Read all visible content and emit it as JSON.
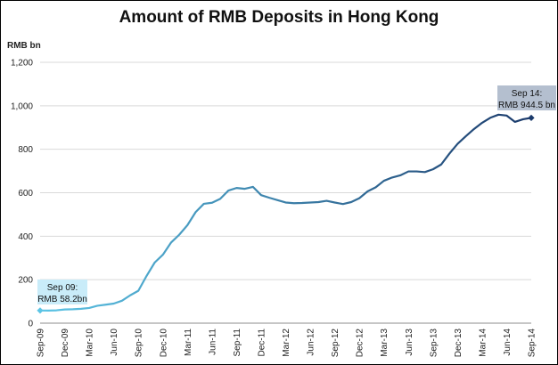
{
  "chart_data": {
    "type": "line",
    "title": "Amount of RMB Deposits in Hong Kong",
    "ylabel": "RMB bn",
    "xlabel": "",
    "ylim": [
      0,
      1200
    ],
    "yticks": [
      "0",
      "200",
      "400",
      "600",
      "800",
      "1,000",
      "1,200"
    ],
    "grid": "horizontal",
    "x_tick_labels": [
      "Sep-09",
      "Dec-09",
      "Mar-10",
      "Jun-10",
      "Sep-10",
      "Dec-10",
      "Mar-11",
      "Jun-11",
      "Sep-11",
      "Dec-11",
      "Mar-12",
      "Jun-12",
      "Sep-12",
      "Dec-12",
      "Mar-13",
      "Jun-13",
      "Sep-13",
      "Dec-13",
      "Mar-14",
      "Jun-14",
      "Sep-14"
    ],
    "series": [
      {
        "color_start": "#5cc5e6",
        "color_end": "#1b3a6b",
        "x": [
          "Sep-09",
          "Oct-09",
          "Nov-09",
          "Dec-09",
          "Jan-10",
          "Feb-10",
          "Mar-10",
          "Apr-10",
          "May-10",
          "Jun-10",
          "Jul-10",
          "Aug-10",
          "Sep-10",
          "Oct-10",
          "Nov-10",
          "Dec-10",
          "Jan-11",
          "Feb-11",
          "Mar-11",
          "Apr-11",
          "May-11",
          "Jun-11",
          "Jul-11",
          "Aug-11",
          "Sep-11",
          "Oct-11",
          "Nov-11",
          "Dec-11",
          "Jan-12",
          "Feb-12",
          "Mar-12",
          "Apr-12",
          "May-12",
          "Jun-12",
          "Jul-12",
          "Aug-12",
          "Sep-12",
          "Oct-12",
          "Nov-12",
          "Dec-12",
          "Jan-13",
          "Feb-13",
          "Mar-13",
          "Apr-13",
          "May-13",
          "Jun-13",
          "Jul-13",
          "Aug-13",
          "Sep-13",
          "Oct-13",
          "Nov-13",
          "Dec-13",
          "Jan-14",
          "Feb-14",
          "Mar-14",
          "Apr-14",
          "May-14",
          "Jun-14",
          "Jul-14",
          "Aug-14",
          "Sep-14"
        ],
        "values": [
          58.2,
          58,
          59,
          63,
          64,
          66,
          70,
          80,
          85,
          90,
          103,
          128,
          149,
          217,
          279,
          315,
          371,
          407,
          451,
          511,
          549,
          554,
          572,
          610,
          622,
          618,
          627,
          589,
          577,
          566,
          555,
          552,
          553,
          555,
          557,
          563,
          555,
          548,
          557,
          575,
          606,
          625,
          655,
          670,
          680,
          698,
          698,
          695,
          708,
          730,
          780,
          825,
          860,
          893,
          922,
          945,
          959,
          955,
          926,
          938,
          944.5
        ]
      }
    ],
    "annotations": [
      {
        "line1": "Sep 09:",
        "line2": "RMB 58.2bn",
        "color": "#c9ecf9"
      },
      {
        "line1": "Sep 14:",
        "line2": "RMB 944.5 bn",
        "color": "#b4bfcf"
      }
    ]
  }
}
